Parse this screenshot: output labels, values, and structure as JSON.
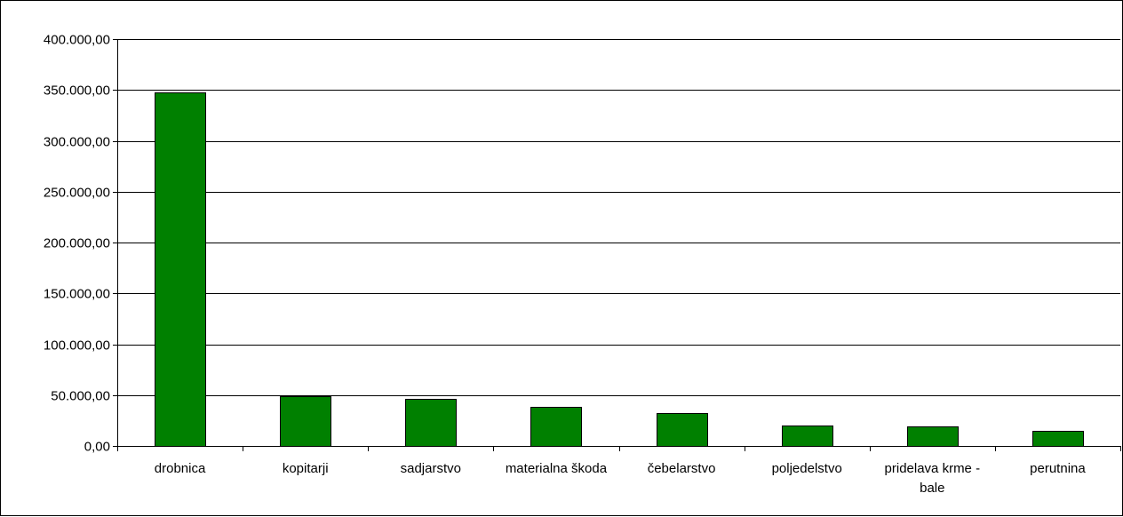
{
  "chart_data": {
    "type": "bar",
    "title": "",
    "xlabel": "",
    "ylabel": "",
    "categories": [
      [
        "drobnica"
      ],
      [
        "kopitarji"
      ],
      [
        "sadjarstvo"
      ],
      [
        "materialna škoda"
      ],
      [
        "čebelarstvo"
      ],
      [
        "poljedelstvo"
      ],
      [
        "pridelava krme -",
        "bale"
      ],
      [
        "perutnina"
      ]
    ],
    "values": [
      348000,
      48500,
      46500,
      38000,
      32000,
      20500,
      19000,
      14500
    ],
    "ylim": [
      0,
      400000
    ],
    "yticks": [
      0,
      50000,
      100000,
      150000,
      200000,
      250000,
      300000,
      350000,
      400000
    ],
    "ytick_labels": [
      "0,00",
      "50.000,00",
      "100.000,00",
      "150.000,00",
      "200.000,00",
      "250.000,00",
      "300.000,00",
      "350.000,00",
      "400.000,00"
    ],
    "grid": true,
    "legend": "none",
    "bar_color": "#008000"
  }
}
